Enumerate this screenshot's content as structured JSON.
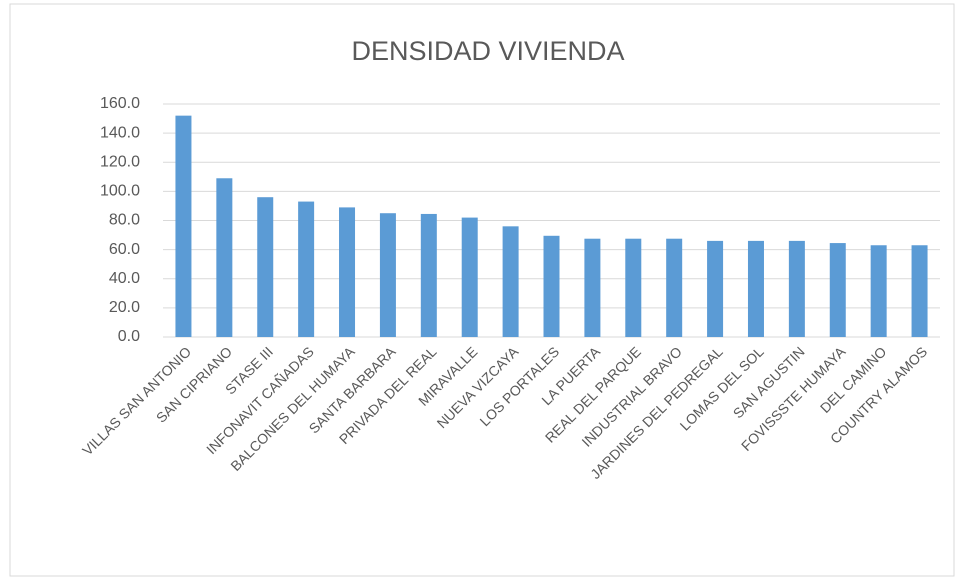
{
  "chart_data": {
    "type": "bar",
    "title": "DENSIDAD VIVIENDA",
    "categories": [
      "VILLAS SAN ANTONIO",
      "SAN CIPRIANO",
      "STASE III",
      "INFONAVIT CAÑADAS",
      "BALCONES DEL HUMAYA",
      "SANTA BARBARA",
      "PRIVADA DEL REAL",
      "MIRAVALLE",
      "NUEVA VIZCAYA",
      "LOS PORTALES",
      "LA PUERTA",
      "REAL DEL PARQUE",
      "INDUSTRIAL BRAVO",
      "JARDINES DEL PEDREGAL",
      "LOMAS DEL SOL",
      "SAN AGUSTIN",
      "FOVISSSTE HUMAYA",
      "DEL CAMINO",
      "COUNTRY ALAMOS"
    ],
    "values": [
      152,
      109,
      96,
      93,
      89,
      85,
      84.5,
      82,
      76,
      69.5,
      67.5,
      67.5,
      67.5,
      66,
      66,
      66,
      64.5,
      63,
      63
    ],
    "color": "#5b9bd5",
    "ylim": [
      0,
      160
    ],
    "yticks": [
      {
        "value": 0,
        "label": "0.0"
      },
      {
        "value": 20,
        "label": "20.0"
      },
      {
        "value": 40,
        "label": "40.0"
      },
      {
        "value": 60,
        "label": "60.0"
      },
      {
        "value": 80,
        "label": "80.0"
      },
      {
        "value": 100,
        "label": "100.0"
      },
      {
        "value": 120,
        "label": "120.0"
      },
      {
        "value": 140,
        "label": "140.0"
      },
      {
        "value": 160,
        "label": "160.0"
      }
    ],
    "grid": true
  }
}
